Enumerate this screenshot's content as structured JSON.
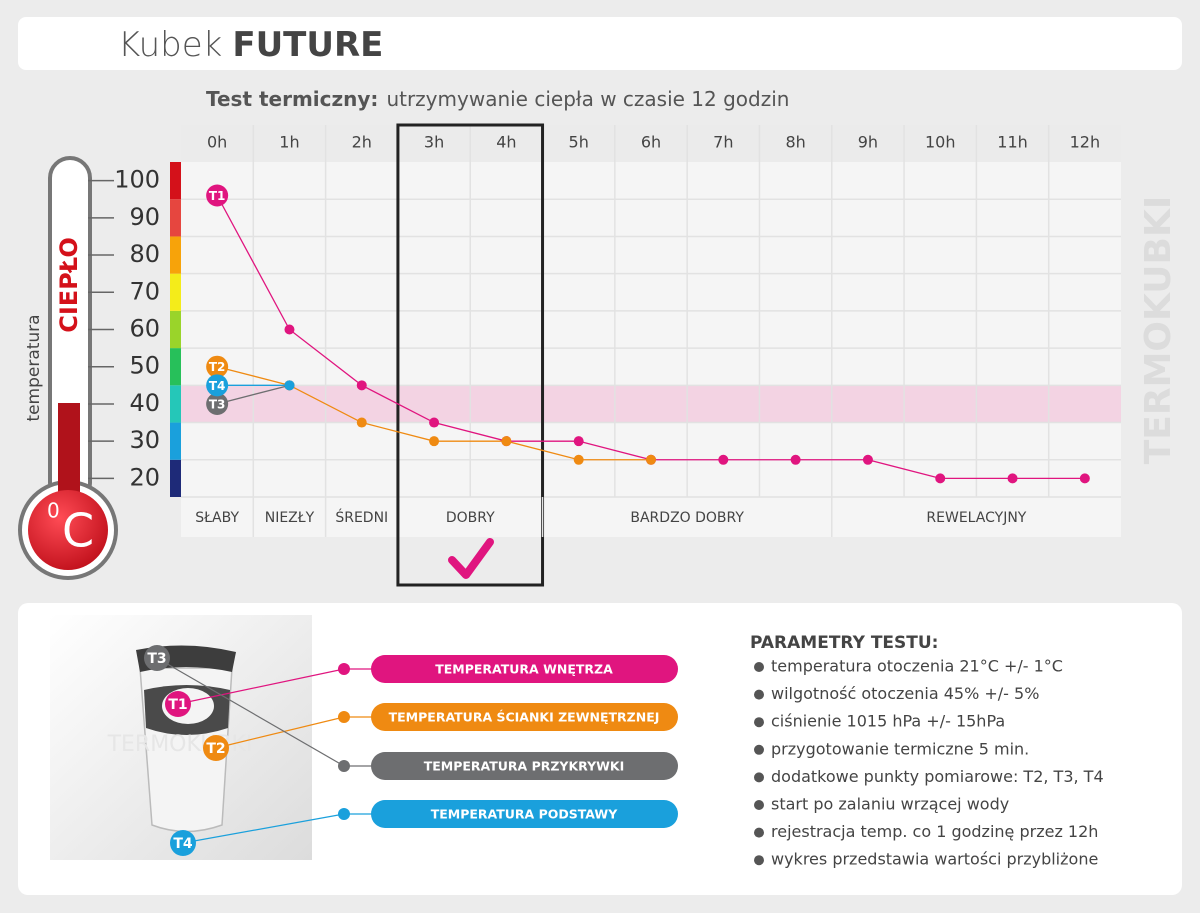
{
  "header": {
    "title_light": "Kubek",
    "title_bold": "FUTURE"
  },
  "chart_data": {
    "type": "line",
    "title_bold": "Test termiczny:",
    "title": "utrzymywanie ciepła w czasie 12 godzin",
    "categories": [
      "0h",
      "1h",
      "2h",
      "3h",
      "4h",
      "5h",
      "6h",
      "7h",
      "8h",
      "9h",
      "10h",
      "11h",
      "12h"
    ],
    "ylim": [
      15,
      105
    ],
    "yticks": [
      20,
      30,
      40,
      50,
      60,
      70,
      80,
      90,
      100
    ],
    "ygrid": [
      25,
      35,
      45,
      55,
      65,
      75,
      85,
      95
    ],
    "scale_colors": [
      "#1e2a78",
      "#1aa0dc",
      "#25c7b8",
      "#27c05a",
      "#9ad42a",
      "#f4ec1a",
      "#f7a30a",
      "#e6463f",
      "#d4111a"
    ],
    "y_label": "temperatura",
    "thermometer_label": "CIEPŁO",
    "unit_superscript": "0",
    "unit": "C",
    "band": [
      35,
      45
    ],
    "band_color": "#f3d3e3",
    "series": [
      {
        "name": "T1",
        "label": "TEMPERATURA WNĘTRZA",
        "color": "#e0157f",
        "values": [
          96,
          60,
          45,
          35,
          30,
          30,
          25,
          25,
          25,
          25,
          20,
          20,
          20
        ]
      },
      {
        "name": "T2",
        "label": "TEMPERATURA ŚCIANKI ZEWNĘTRZNEJ",
        "color": "#ef8a12",
        "values": [
          50,
          45,
          35,
          30,
          30,
          25,
          25,
          null,
          null,
          null,
          null,
          null,
          null
        ]
      },
      {
        "name": "T3",
        "label": "TEMPERATURA PRZYKRYWKI",
        "color": "#6d6e70",
        "values": [
          40,
          45,
          null,
          null,
          null,
          null,
          null,
          null,
          null,
          null,
          null,
          null,
          null
        ]
      },
      {
        "name": "T4",
        "label": "TEMPERATURA PODSTAWY",
        "color": "#1aa0dc",
        "values": [
          45,
          45,
          null,
          null,
          null,
          null,
          null,
          null,
          null,
          null,
          null,
          null,
          null
        ]
      }
    ],
    "ratings": [
      {
        "label": "SŁABY",
        "from": "0h",
        "to": "0h"
      },
      {
        "label": "NIEZŁY",
        "from": "1h",
        "to": "1h"
      },
      {
        "label": "ŚREDNI",
        "from": "2h",
        "to": "2h"
      },
      {
        "label": "DOBRY",
        "from": "3h",
        "to": "4h"
      },
      {
        "label": "BARDZO DOBRY",
        "from": "5h",
        "to": "8h"
      },
      {
        "label": "REWELACYJNY",
        "from": "9h",
        "to": "12h"
      }
    ],
    "selected": "DOBRY",
    "watermark": "TERMOKUBKI"
  },
  "image_watermark": "TERMOKUBKI",
  "parameters": {
    "title": "PARAMETRY TESTU:",
    "items": [
      "temperatura otoczenia 21°C +/- 1°C",
      "wilgotność otoczenia 45% +/- 5%",
      "ciśnienie 1015 hPa +/- 15hPa",
      "przygotowanie termiczne 5 min.",
      "dodatkowe punkty pomiarowe: T2, T3, T4",
      "start po zalaniu wrzącej wody",
      "rejestracja temp. co 1 godzinę przez 12h",
      "wykres przedstawia wartości przybliżone"
    ]
  }
}
